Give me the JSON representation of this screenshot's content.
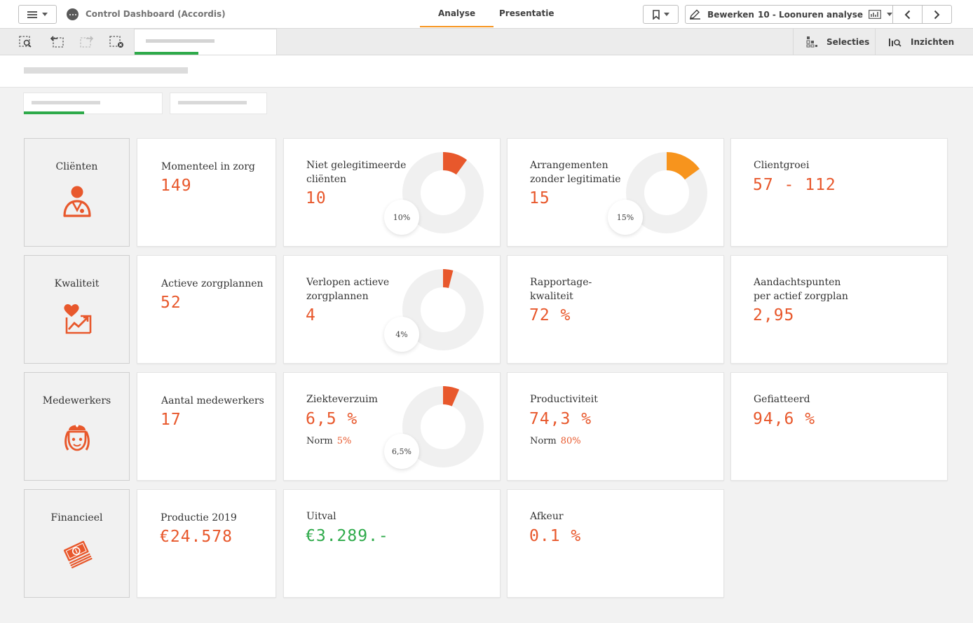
{
  "topbar": {
    "app_title": "Control Dashboard (Accordis)",
    "tabs": [
      "Analyse",
      "Presentatie"
    ],
    "edit_label": "Bewerken",
    "sheet_label": "10 - Loonuren analyse"
  },
  "toolbar": {
    "selections_label": "Selecties",
    "insights_label": "Inzichten"
  },
  "categories": [
    {
      "label": "Cliënten",
      "icon": "client-icon"
    },
    {
      "label": "Kwaliteit",
      "icon": "heart-chart-icon"
    },
    {
      "label": "Medewerkers",
      "icon": "nurse-icon"
    },
    {
      "label": "Financieel",
      "icon": "money-stack-icon"
    }
  ],
  "kpis": {
    "momenteel_in_zorg": {
      "label": "Momenteel in zorg",
      "value": "149"
    },
    "niet_gelegitimeerd": {
      "label_1": "Niet gelegitimeerde",
      "label_2": "cliënten",
      "value": "10",
      "percent": "10%",
      "fraction": 0.1
    },
    "arrangementen": {
      "label_1": "Arrangementen",
      "label_2": "zonder legitimatie",
      "value": "15",
      "percent": "15%",
      "fraction": 0.15
    },
    "clientgroei": {
      "label": "Clientgroei",
      "value": "57 - 112"
    },
    "actieve_zorgplannen": {
      "label": "Actieve zorgplannen",
      "value": "52"
    },
    "verlopen": {
      "label_1": "Verlopen actieve",
      "label_2": "zorgplannen",
      "value": "4",
      "percent": "4%",
      "fraction": 0.04
    },
    "rapportage": {
      "label_1": "Rapportage-",
      "label_2": "kwaliteit",
      "value": "72 %"
    },
    "aandachtspunten": {
      "label_1": "Aandachtspunten",
      "label_2": "per actief zorgplan",
      "value": "2,95"
    },
    "aantal_medewerkers": {
      "label": "Aantal medewerkers",
      "value": "17"
    },
    "ziekteverzuim": {
      "label": "Ziekteverzuim",
      "value": "6,5 %",
      "norm_label": "Norm",
      "norm_value": "5%",
      "percent": "6,5%",
      "fraction": 0.065
    },
    "productiviteit": {
      "label": "Productiviteit",
      "value": "74,3 %",
      "norm_label": "Norm",
      "norm_value": "80%"
    },
    "gefiatteerd": {
      "label": "Gefiatteerd",
      "value": "94,6 %"
    },
    "productie": {
      "label": "Productie 2019",
      "value": "€24.578"
    },
    "uitval": {
      "label": "Uitval",
      "value": "€3.289.-"
    },
    "afkeur": {
      "label": "Afkeur",
      "value": "0.1 %"
    }
  },
  "colors": {
    "accent_orange": "#e8582c",
    "amber": "#f7941d",
    "green": "#2eaa4a",
    "donut_track": "#f0f0f0"
  }
}
